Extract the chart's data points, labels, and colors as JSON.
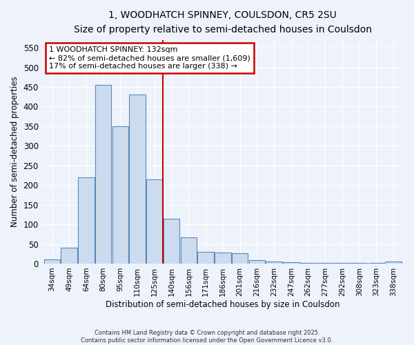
{
  "title_line1": "1, WOODHATCH SPINNEY, COULSDON, CR5 2SU",
  "title_line2": "Size of property relative to semi-detached houses in Coulsdon",
  "xlabel": "Distribution of semi-detached houses by size in Coulsdon",
  "ylabel": "Number of semi-detached properties",
  "categories": [
    "34sqm",
    "49sqm",
    "64sqm",
    "80sqm",
    "95sqm",
    "110sqm",
    "125sqm",
    "140sqm",
    "156sqm",
    "171sqm",
    "186sqm",
    "201sqm",
    "216sqm",
    "232sqm",
    "247sqm",
    "262sqm",
    "277sqm",
    "292sqm",
    "308sqm",
    "323sqm",
    "338sqm"
  ],
  "values": [
    10,
    40,
    220,
    455,
    350,
    430,
    215,
    115,
    67,
    30,
    28,
    27,
    9,
    6,
    4,
    2,
    2,
    1,
    1,
    1,
    5
  ],
  "bar_color": "#ccdcee",
  "bar_edge_color": "#5588bb",
  "red_line_x": 6.5,
  "annotation_title": "1 WOODHATCH SPINNEY: 132sqm",
  "annotation_line1": "← 82% of semi-detached houses are smaller (1,609)",
  "annotation_line2": "17% of semi-detached houses are larger (338) →",
  "annotation_box_facecolor": "#ffffff",
  "annotation_box_edgecolor": "#cc0000",
  "ylim": [
    0,
    570
  ],
  "yticks": [
    0,
    50,
    100,
    150,
    200,
    250,
    300,
    350,
    400,
    450,
    500,
    550
  ],
  "bg_color": "#eef2fa",
  "grid_color": "#ffffff",
  "footer_line1": "Contains HM Land Registry data © Crown copyright and database right 2025.",
  "footer_line2": "Contains public sector information licensed under the Open Government Licence v3.0."
}
